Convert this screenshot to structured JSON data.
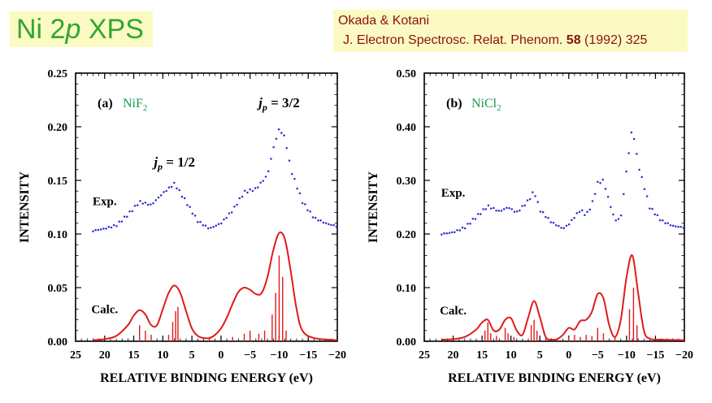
{
  "header": {
    "title_prefix": "Ni 2",
    "title_italic": "p",
    "title_suffix": " XPS",
    "ref_authors": "Okada & Kotani",
    "ref_journal": "J. Electron Spectrosc. Relat. Phenom.",
    "ref_volume": "58",
    "ref_tail": "(1992) 325"
  },
  "colors": {
    "title_green": "#33a633",
    "ref_red": "#8b1010",
    "box_yellow": "#fbfac2",
    "exp_blue": "#2a2ad8",
    "calc_red": "#e21a1a",
    "sample_green": "#1a9a4a"
  },
  "chart_data": [
    {
      "type": "line",
      "panel_label": "(a)",
      "compound_label": "NiF",
      "compound_sub": "2",
      "xlabel": "RELATIVE BINDING ENERGY (eV)",
      "ylabel": "INTENSITY",
      "xlim": [
        25,
        -20
      ],
      "ylim": [
        0,
        0.25
      ],
      "xticks": [
        25,
        20,
        15,
        10,
        5,
        0,
        -5,
        -10,
        -15,
        -20
      ],
      "xtick_labels": [
        "25",
        "20",
        "15",
        "10",
        "5",
        "0",
        "−5",
        "−10",
        "−15",
        "−20"
      ],
      "yticks": [
        0,
        0.05,
        0.1,
        0.15,
        0.2,
        0.25
      ],
      "ytick_labels": [
        "0.00",
        "0.05",
        "0.10",
        "0.15",
        "0.20",
        "0.25"
      ],
      "annotations": [
        {
          "text_j": "j",
          "text_sub": "p",
          "text_eq": " = 1/2",
          "x": 8,
          "y": 0.163
        },
        {
          "text_j": "j",
          "text_sub": "p",
          "text_eq": " = 3/2",
          "x": -10,
          "y": 0.218
        }
      ],
      "series": [
        {
          "name": "Exp.",
          "label_x": 20,
          "label_y": 0.127,
          "x": [
            22,
            20,
            18,
            16,
            14,
            12,
            10,
            8,
            6,
            4,
            2,
            0,
            -2,
            -4,
            -6,
            -8,
            -9,
            -10,
            -11,
            -12,
            -14,
            -16,
            -18,
            -20
          ],
          "y": [
            0.103,
            0.105,
            0.108,
            0.118,
            0.13,
            0.127,
            0.138,
            0.147,
            0.13,
            0.112,
            0.105,
            0.11,
            0.122,
            0.139,
            0.142,
            0.155,
            0.18,
            0.198,
            0.19,
            0.16,
            0.13,
            0.115,
            0.11,
            0.107
          ]
        },
        {
          "name": "Calc.",
          "label_x": 20,
          "label_y": 0.026,
          "x": [
            22,
            20,
            18,
            16,
            15,
            14,
            13,
            12,
            11,
            10,
            9,
            8,
            7,
            6,
            5,
            4,
            3,
            2,
            1,
            0,
            -1,
            -2,
            -3,
            -4,
            -5,
            -6,
            -7,
            -8,
            -9,
            -10,
            -11,
            -12,
            -13,
            -14,
            -16,
            -20
          ],
          "y": [
            0.001,
            0.002,
            0.005,
            0.015,
            0.024,
            0.029,
            0.025,
            0.015,
            0.015,
            0.03,
            0.045,
            0.052,
            0.045,
            0.028,
            0.012,
            0.005,
            0.003,
            0.003,
            0.006,
            0.012,
            0.022,
            0.035,
            0.046,
            0.05,
            0.048,
            0.044,
            0.045,
            0.06,
            0.085,
            0.101,
            0.095,
            0.065,
            0.03,
            0.01,
            0.003,
            0.001
          ]
        }
      ],
      "sticks": [
        {
          "x": 14,
          "h": 0.015
        },
        {
          "x": 13,
          "h": 0.01
        },
        {
          "x": 12,
          "h": 0.006
        },
        {
          "x": 9,
          "h": 0.006
        },
        {
          "x": 8.3,
          "h": 0.018
        },
        {
          "x": 7.8,
          "h": 0.028
        },
        {
          "x": 7.4,
          "h": 0.032
        },
        {
          "x": 2,
          "h": 0.004
        },
        {
          "x": -2,
          "h": 0.004
        },
        {
          "x": -4,
          "h": 0.007
        },
        {
          "x": -5,
          "h": 0.01
        },
        {
          "x": -6.5,
          "h": 0.007
        },
        {
          "x": -7.5,
          "h": 0.01
        },
        {
          "x": -8.8,
          "h": 0.025
        },
        {
          "x": -9.4,
          "h": 0.045
        },
        {
          "x": -10.0,
          "h": 0.08
        },
        {
          "x": -10.6,
          "h": 0.06
        },
        {
          "x": -11.2,
          "h": 0.01
        }
      ]
    },
    {
      "type": "line",
      "panel_label": "(b)",
      "compound_label": "NiCl",
      "compound_sub": "2",
      "xlabel": "RELATIVE BINDING ENERGY (eV)",
      "ylabel": "INTENSITY",
      "xlim": [
        25,
        -20
      ],
      "ylim": [
        0,
        0.5
      ],
      "xticks": [
        25,
        20,
        15,
        10,
        5,
        0,
        -5,
        -10,
        -15,
        -20
      ],
      "xtick_labels": [
        "25",
        "20",
        "15",
        "10",
        "5",
        "0",
        "−5",
        "−10",
        "−15",
        "−20"
      ],
      "yticks": [
        0,
        0.1,
        0.2,
        0.3,
        0.4,
        0.5
      ],
      "ytick_labels": [
        "0.00",
        "0.10",
        "0.20",
        "0.30",
        "0.40",
        "0.50"
      ],
      "annotations": [],
      "series": [
        {
          "name": "Exp.",
          "label_x": 20,
          "label_y": 0.27,
          "x": [
            22,
            20,
            18,
            16,
            14,
            12,
            10.5,
            9,
            7,
            6,
            5,
            3,
            1,
            0,
            -1,
            -2,
            -3,
            -4,
            -5,
            -6,
            -7,
            -8,
            -9,
            -10,
            -11,
            -12,
            -14,
            -16,
            -18,
            -20
          ],
          "y": [
            0.2,
            0.203,
            0.212,
            0.232,
            0.252,
            0.242,
            0.25,
            0.24,
            0.262,
            0.28,
            0.245,
            0.222,
            0.21,
            0.218,
            0.232,
            0.245,
            0.235,
            0.255,
            0.295,
            0.3,
            0.26,
            0.225,
            0.23,
            0.32,
            0.4,
            0.33,
            0.25,
            0.225,
            0.215,
            0.212
          ]
        },
        {
          "name": "Calc.",
          "label_x": 20,
          "label_y": 0.05,
          "x": [
            22,
            20,
            18,
            16,
            15,
            14,
            13,
            12,
            11,
            10,
            9,
            8,
            7,
            6,
            5,
            4,
            3,
            2,
            1,
            0,
            -1,
            -2,
            -3,
            -4,
            -5,
            -6,
            -7,
            -8,
            -9,
            -10,
            -11,
            -12,
            -13,
            -14,
            -16,
            -20
          ],
          "y": [
            0.003,
            0.004,
            0.008,
            0.022,
            0.035,
            0.04,
            0.02,
            0.022,
            0.04,
            0.043,
            0.02,
            0.012,
            0.045,
            0.075,
            0.045,
            0.008,
            0.003,
            0.004,
            0.012,
            0.025,
            0.022,
            0.038,
            0.04,
            0.055,
            0.088,
            0.08,
            0.03,
            0.008,
            0.04,
            0.12,
            0.16,
            0.09,
            0.02,
            0.005,
            0.003,
            0.002
          ]
        }
      ],
      "sticks": [
        {
          "x": 14.5,
          "h": 0.02
        },
        {
          "x": 14,
          "h": 0.035
        },
        {
          "x": 13.5,
          "h": 0.015
        },
        {
          "x": 12.5,
          "h": 0.01
        },
        {
          "x": 11,
          "h": 0.025
        },
        {
          "x": 10.5,
          "h": 0.015
        },
        {
          "x": 9.5,
          "h": 0.008
        },
        {
          "x": 6.5,
          "h": 0.03
        },
        {
          "x": 6,
          "h": 0.04
        },
        {
          "x": 5.5,
          "h": 0.02
        },
        {
          "x": 2,
          "h": 0.005
        },
        {
          "x": 0,
          "h": 0.008
        },
        {
          "x": -1,
          "h": 0.012
        },
        {
          "x": -2,
          "h": 0.008
        },
        {
          "x": -3,
          "h": 0.012
        },
        {
          "x": -4,
          "h": 0.01
        },
        {
          "x": -5,
          "h": 0.025
        },
        {
          "x": -6,
          "h": 0.015
        },
        {
          "x": -8,
          "h": 0.008
        },
        {
          "x": -10.5,
          "h": 0.06
        },
        {
          "x": -11.2,
          "h": 0.1
        },
        {
          "x": -11.8,
          "h": 0.03
        }
      ]
    }
  ]
}
